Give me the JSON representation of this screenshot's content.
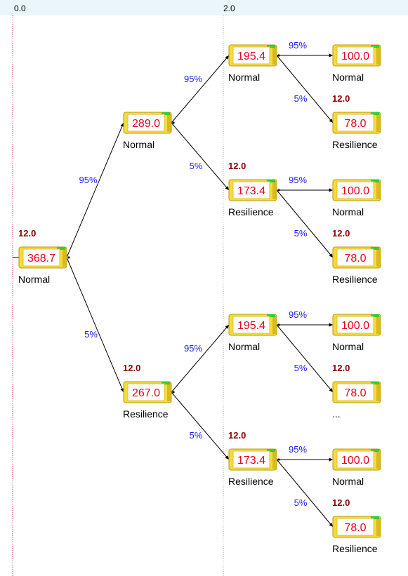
{
  "ruler": {
    "labels": [
      "0.0",
      "2.0"
    ]
  },
  "colors": {
    "ruler_bg": "#eaf6fb",
    "node_yellow": "#f4dc3c",
    "node_edge": "#b89a10",
    "node_green": "#33cc33",
    "value_red": "#e8001c",
    "cost_darkred": "#8b0000",
    "prob_blue": "#1a1aff",
    "guide_red": "#c02040",
    "guide_blue": "#90b0d0"
  },
  "nodes": [
    {
      "id": "root",
      "value": "368.7",
      "state": "Normal",
      "cost": "12.0"
    },
    {
      "id": "a",
      "value": "289.0",
      "state": "Normal",
      "cost": ""
    },
    {
      "id": "b",
      "value": "267.0",
      "state": "Resilience",
      "cost": "12.0"
    },
    {
      "id": "aa",
      "value": "195.4",
      "state": "Normal",
      "cost": ""
    },
    {
      "id": "ab",
      "value": "173.4",
      "state": "Resilience",
      "cost": "12.0"
    },
    {
      "id": "ba",
      "value": "195.4",
      "state": "Normal",
      "cost": ""
    },
    {
      "id": "bb",
      "value": "173.4",
      "state": "Resilience",
      "cost": "12.0"
    },
    {
      "id": "aaa",
      "value": "100.0",
      "state": "Normal",
      "cost": ""
    },
    {
      "id": "aab",
      "value": "78.0",
      "state": "Resilience",
      "cost": "12.0"
    },
    {
      "id": "aba",
      "value": "100.0",
      "state": "Normal",
      "cost": ""
    },
    {
      "id": "abb",
      "value": "78.0",
      "state": "Resilience",
      "cost": "12.0"
    },
    {
      "id": "baa",
      "value": "100.0",
      "state": "Normal",
      "cost": ""
    },
    {
      "id": "bab",
      "value": "78.0",
      "state": "...",
      "cost": "12.0"
    },
    {
      "id": "bba",
      "value": "100.0",
      "state": "Normal",
      "cost": ""
    },
    {
      "id": "bbb",
      "value": "78.0",
      "state": "Resilience",
      "cost": "12.0"
    }
  ],
  "edges": [
    {
      "from": "root",
      "to": "a",
      "prob": "95%"
    },
    {
      "from": "root",
      "to": "b",
      "prob": "5%"
    },
    {
      "from": "a",
      "to": "aa",
      "prob": "95%"
    },
    {
      "from": "a",
      "to": "ab",
      "prob": "5%"
    },
    {
      "from": "b",
      "to": "ba",
      "prob": "95%"
    },
    {
      "from": "b",
      "to": "bb",
      "prob": "5%"
    },
    {
      "from": "aa",
      "to": "aaa",
      "prob": "95%"
    },
    {
      "from": "aa",
      "to": "aab",
      "prob": "5%"
    },
    {
      "from": "ab",
      "to": "aba",
      "prob": "95%"
    },
    {
      "from": "ab",
      "to": "abb",
      "prob": "5%"
    },
    {
      "from": "ba",
      "to": "baa",
      "prob": "95%"
    },
    {
      "from": "ba",
      "to": "bab",
      "prob": "5%"
    },
    {
      "from": "bb",
      "to": "bba",
      "prob": "95%"
    },
    {
      "from": "bb",
      "to": "bbb",
      "prob": "5%"
    }
  ]
}
